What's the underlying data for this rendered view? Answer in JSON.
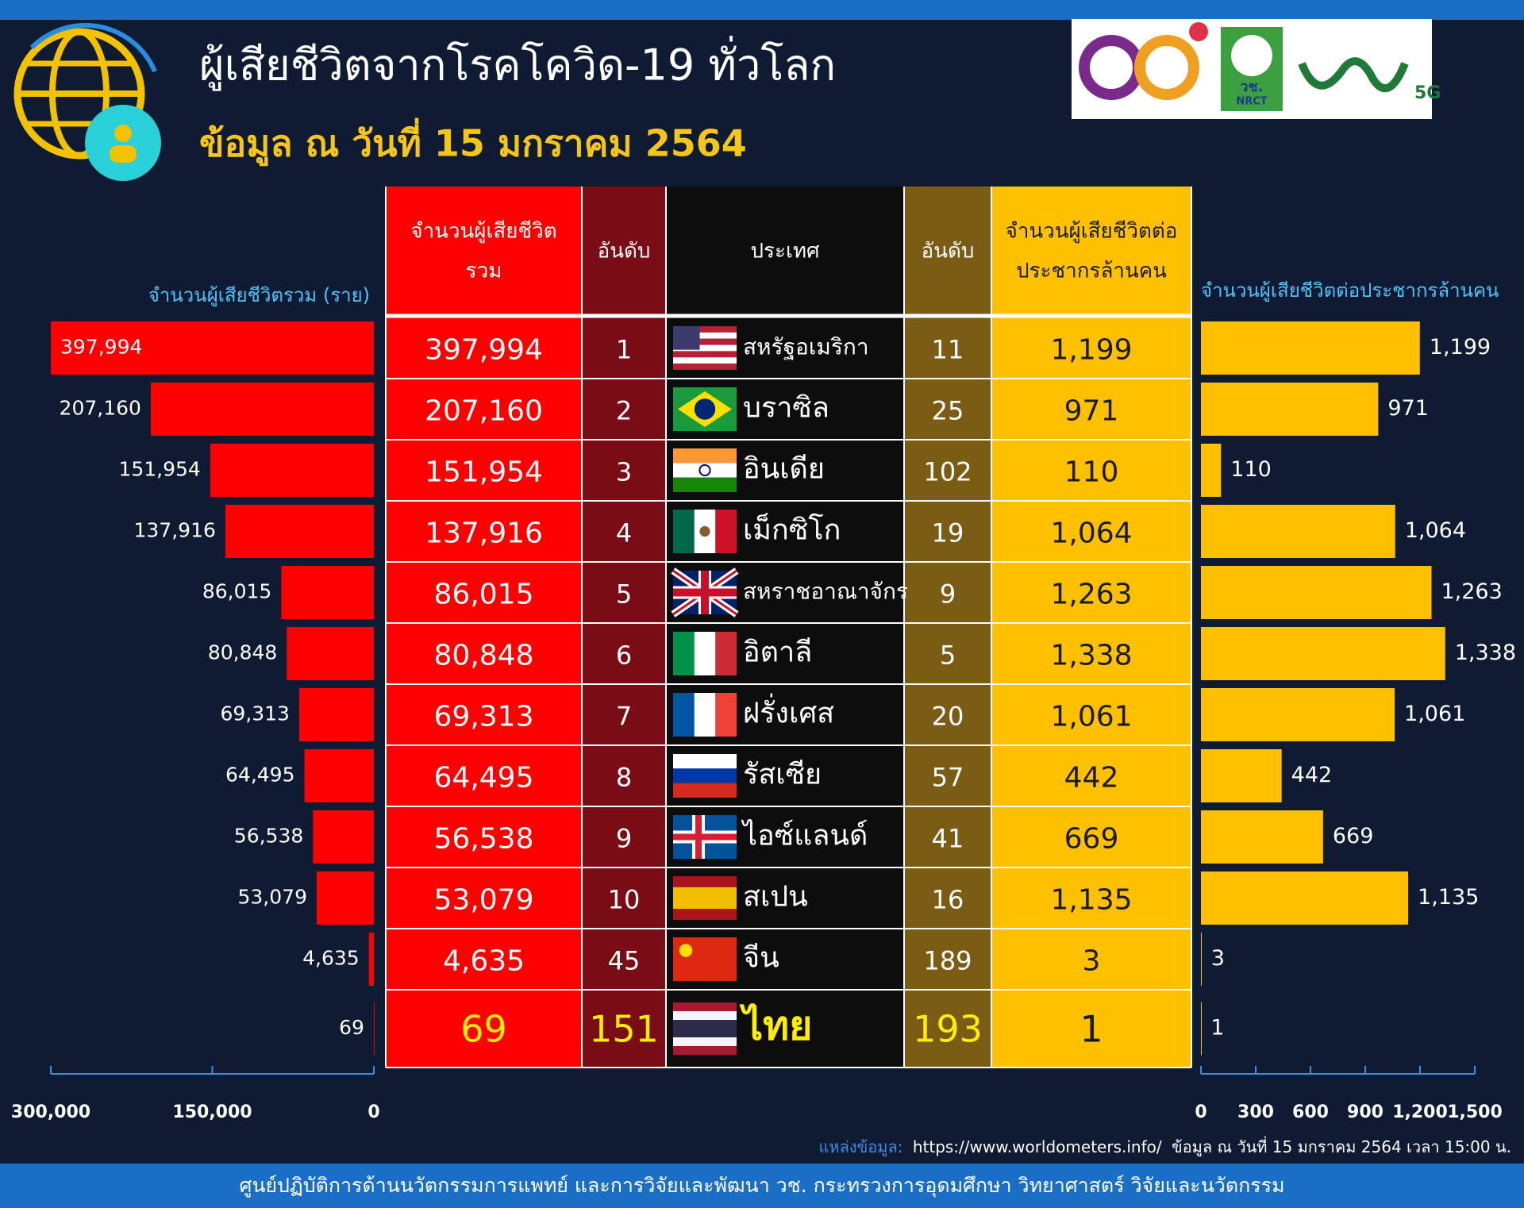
{
  "header": {
    "title": "ผู้เสียชีวิตจากโรคโควิด-19 ทั่วโลก",
    "subtitle": "ข้อมูล ณ วันที่ 15 มกราคม 2564",
    "logo_texts": [
      "วช.",
      "NRCT",
      "5G"
    ]
  },
  "table": {
    "headers": [
      [
        "จำนวนผู้เสียชีวิต",
        "รวม"
      ],
      [
        "อันดับ"
      ],
      [
        "ประเทศ"
      ],
      [
        "อันดับ"
      ],
      [
        "จำนวนผู้เสียชีวิตต่อ",
        "ประชากรล้านคน"
      ]
    ],
    "rows": [
      [
        "397,994",
        "1",
        "สหรัฐอเมริกา",
        "11",
        "1,199"
      ],
      [
        "207,160",
        "2",
        "บราซิล",
        "25",
        "971"
      ],
      [
        "151,954",
        "3",
        "อินเดีย",
        "102",
        "110"
      ],
      [
        "137,916",
        "4",
        "เม็กซิโก",
        "19",
        "1,064"
      ],
      [
        "86,015",
        "5",
        "สหราชอาณาจักร",
        "9",
        "1,263"
      ],
      [
        "80,848",
        "6",
        "อิตาลี",
        "5",
        "1,338"
      ],
      [
        "69,313",
        "7",
        "ฝรั่งเศส",
        "20",
        "1,061"
      ],
      [
        "64,495",
        "8",
        "รัสเซีย",
        "57",
        "442"
      ],
      [
        "56,538",
        "9",
        "ไอซ์แลนด์",
        "41",
        "669"
      ],
      [
        "53,079",
        "10",
        "สเปน",
        "16",
        "1,135"
      ],
      [
        "4,635",
        "45",
        "จีน",
        "189",
        "3"
      ],
      [
        "69",
        "151",
        "ไทย",
        "193",
        "1"
      ]
    ]
  },
  "chart_data": [
    {
      "type": "bar",
      "orientation": "horizontal",
      "x_label": "จำนวนผู้เสียชีวิตรวม (ราย)",
      "values": [
        397994,
        207160,
        151954,
        137916,
        86015,
        80848,
        69313,
        64495,
        56538,
        53079,
        4635,
        69
      ],
      "value_labels": [
        "397,994",
        "207,160",
        "151,954",
        "137,916",
        "86,015",
        "80,848",
        "69,313",
        "64,495",
        "56,538",
        "53,079",
        "4,635",
        "69"
      ],
      "color": "#ff0000",
      "xlim": [
        300000,
        0
      ],
      "xticks": [
        {
          "value": 300000,
          "label": "300,000"
        },
        {
          "value": 150000,
          "label": "150,000"
        },
        0
      ]
    },
    {
      "type": "bar",
      "orientation": "horizontal",
      "x_label": "จำนวนผู้เสียชีวิตต่อประชากรล้านคน",
      "values": [
        1199,
        971,
        110,
        1064,
        1263,
        1338,
        1061,
        442,
        669,
        1135,
        3,
        1
      ],
      "value_labels": [
        "1,199",
        "971",
        "110",
        "1,064",
        "1,263",
        "1,338",
        "1,061",
        "442",
        "669",
        "1,135",
        "3",
        "1"
      ],
      "color": "#ffc000",
      "xlim": [
        0,
        1500
      ],
      "xticks": [
        0,
        300,
        600,
        900,
        {
          "value": 1200,
          "label": "1,200"
        },
        {
          "value": 1500,
          "label": "1,500"
        }
      ]
    }
  ],
  "source": {
    "label": "แหล่งข้อมูล:",
    "url": "https://www.worldometers.info/",
    "note": "ข้อมูล ณ วันที่ 15 มกราคม 2564 เวลา 15:00 น."
  },
  "footer": "ศูนย์ปฏิบัติการด้านนวัตกรรมการแพทย์ และการวิจัยและพัฒนา  วช.   กระทรวงการอุดมศึกษา วิทยาศาสตร์ วิจัยและนวัตกรรม"
}
